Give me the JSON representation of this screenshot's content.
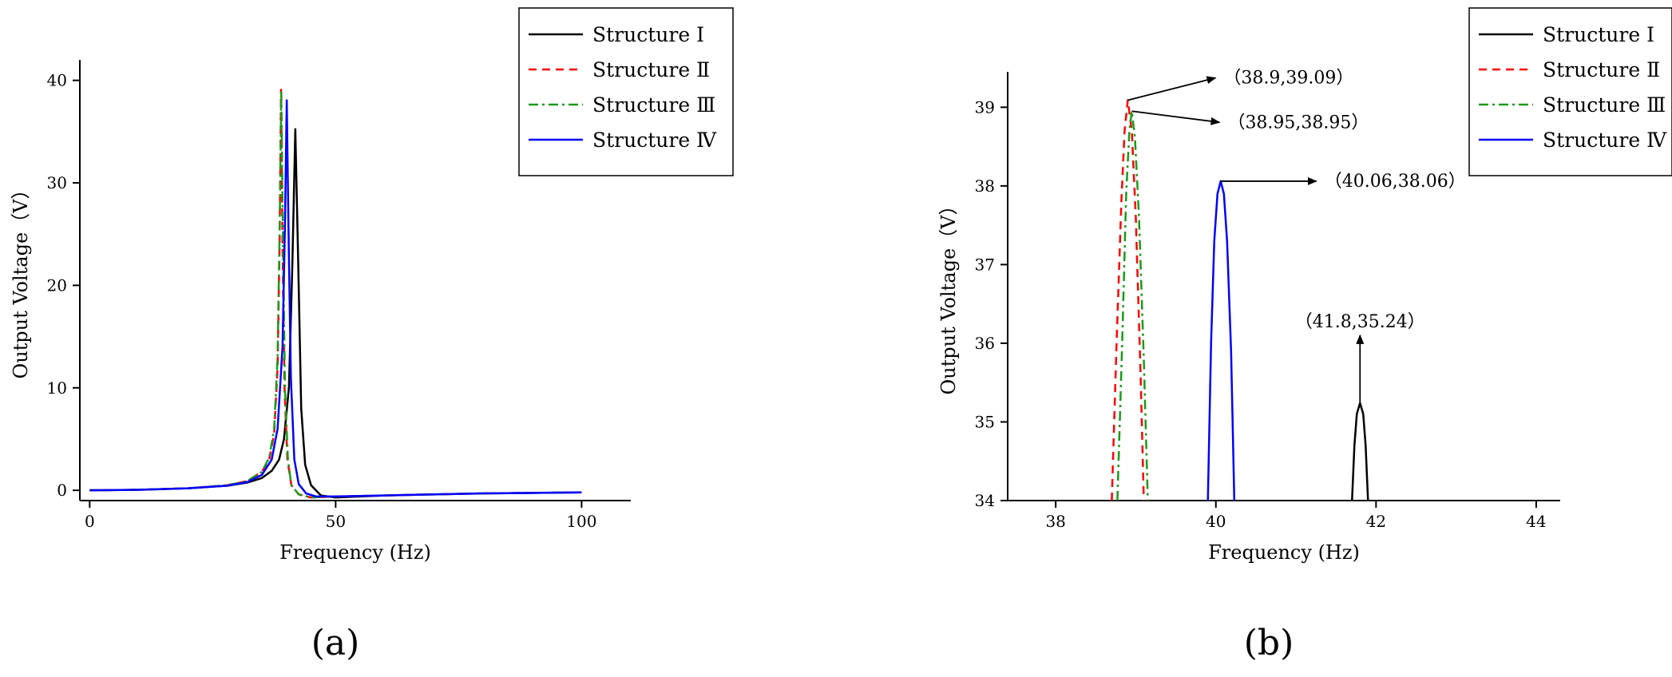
{
  "chart_data": [
    {
      "type": "line",
      "panel_label": "(a)",
      "xlabel": "Frequency (Hz)",
      "ylabel": "Output Voltage（V）",
      "xlim": [
        -2,
        110
      ],
      "ylim": [
        -1,
        42
      ],
      "xticks": [
        0,
        50,
        100
      ],
      "yticks": [
        0,
        10,
        20,
        30,
        40
      ],
      "grid": false,
      "legend_position": "top-right outside",
      "series": [
        {
          "name": "Structure Ⅰ",
          "color": "#000000",
          "dash": "solid",
          "x": [
            0,
            10,
            20,
            28,
            32,
            35,
            37,
            38.5,
            39.5,
            40.5,
            41.2,
            41.8,
            42.4,
            43,
            43.8,
            45,
            47,
            50,
            60,
            80,
            100
          ],
          "y": [
            0,
            0.05,
            0.2,
            0.45,
            0.75,
            1.2,
            1.9,
            3.0,
            5.0,
            10.0,
            22.0,
            35.24,
            22.0,
            8.0,
            2.5,
            0.5,
            -0.5,
            -0.7,
            -0.5,
            -0.3,
            -0.2
          ]
        },
        {
          "name": "Structure Ⅱ",
          "color": "#ff0000",
          "dash": "10,7",
          "x": [
            0,
            10,
            20,
            28,
            32,
            35,
            36.5,
            37.5,
            38.2,
            38.6,
            38.9,
            39.2,
            39.6,
            40.2,
            41,
            42.5,
            45,
            50,
            60,
            80,
            100
          ],
          "y": [
            0,
            0.05,
            0.2,
            0.5,
            0.9,
            1.8,
            3.0,
            5.5,
            12.0,
            24.0,
            39.09,
            24.0,
            10.0,
            3.0,
            0.5,
            -0.4,
            -0.7,
            -0.6,
            -0.5,
            -0.3,
            -0.2
          ]
        },
        {
          "name": "Structure Ⅲ",
          "color": "#1a9a1a",
          "dash": "12,5,3,5",
          "x": [
            0,
            10,
            20,
            28,
            32,
            35,
            36.5,
            37.5,
            38.2,
            38.6,
            38.95,
            39.3,
            39.7,
            40.3,
            41,
            42.5,
            45,
            50,
            60,
            80,
            100
          ],
          "y": [
            0,
            0.05,
            0.2,
            0.5,
            0.9,
            1.8,
            3.2,
            6.0,
            13.0,
            25.0,
            38.95,
            24.0,
            10.0,
            3.0,
            0.5,
            -0.4,
            -0.7,
            -0.6,
            -0.5,
            -0.3,
            -0.2
          ]
        },
        {
          "name": "Structure Ⅳ",
          "color": "#0000ff",
          "dash": "solid",
          "x": [
            0,
            10,
            20,
            28,
            32,
            35,
            37,
            38.2,
            39.2,
            39.7,
            40.06,
            40.4,
            40.9,
            41.6,
            42.5,
            44,
            46,
            50,
            60,
            80,
            100
          ],
          "y": [
            0,
            0.05,
            0.2,
            0.45,
            0.8,
            1.5,
            3.0,
            6.0,
            14.0,
            26.0,
            38.06,
            26.0,
            11.0,
            3.0,
            0.6,
            -0.3,
            -0.6,
            -0.6,
            -0.5,
            -0.3,
            -0.2
          ]
        }
      ]
    },
    {
      "type": "line",
      "panel_label": "(b)",
      "xlabel": "Frequency (Hz)",
      "ylabel": "Output Voltage（V）",
      "xlim": [
        37.4,
        44.3
      ],
      "ylim": [
        34,
        39.45
      ],
      "xticks": [
        38,
        40,
        42,
        44
      ],
      "yticks": [
        34,
        35,
        36,
        37,
        38,
        39
      ],
      "grid": false,
      "legend_position": "top-right outside",
      "series": [
        {
          "name": "Structure Ⅰ",
          "color": "#000000",
          "dash": "solid",
          "x": [
            41.7,
            41.73,
            41.76,
            41.8,
            41.84,
            41.87,
            41.9
          ],
          "y": [
            34,
            34.7,
            35.1,
            35.24,
            35.1,
            34.7,
            34
          ]
        },
        {
          "name": "Structure Ⅱ",
          "color": "#ff0000",
          "dash": "10,7",
          "x": [
            38.7,
            38.76,
            38.82,
            38.86,
            38.9,
            38.95,
            39.0,
            39.06,
            39.1
          ],
          "y": [
            34,
            36.0,
            37.8,
            38.7,
            39.09,
            38.7,
            37.6,
            35.6,
            34
          ]
        },
        {
          "name": "Structure Ⅲ",
          "color": "#1a9a1a",
          "dash": "12,5,3,5",
          "x": [
            38.77,
            38.83,
            38.88,
            38.92,
            38.95,
            38.99,
            39.04,
            39.1,
            39.15
          ],
          "y": [
            34,
            36.0,
            37.9,
            38.7,
            38.95,
            38.6,
            37.6,
            35.8,
            34
          ]
        },
        {
          "name": "Structure Ⅳ",
          "color": "#0000ff",
          "dash": "solid",
          "x": [
            39.9,
            39.94,
            39.98,
            40.02,
            40.06,
            40.1,
            40.14,
            40.19,
            40.23
          ],
          "y": [
            34,
            36.0,
            37.3,
            37.9,
            38.06,
            37.9,
            37.3,
            35.9,
            34
          ]
        }
      ],
      "annotations": [
        {
          "text": "（38.9,39.09）",
          "x": 38.9,
          "y": 39.09,
          "dx": 110,
          "dy": -28
        },
        {
          "text": "（38.95,38.95）",
          "x": 38.95,
          "y": 38.95,
          "dx": 110,
          "dy": 14
        },
        {
          "text": "（40.06,38.06）",
          "x": 40.06,
          "y": 38.06,
          "dx": 120,
          "dy": 0
        },
        {
          "text": "（41.8,35.24）",
          "x": 41.8,
          "y": 35.24,
          "dx": 0,
          "dy": -85
        }
      ]
    }
  ]
}
